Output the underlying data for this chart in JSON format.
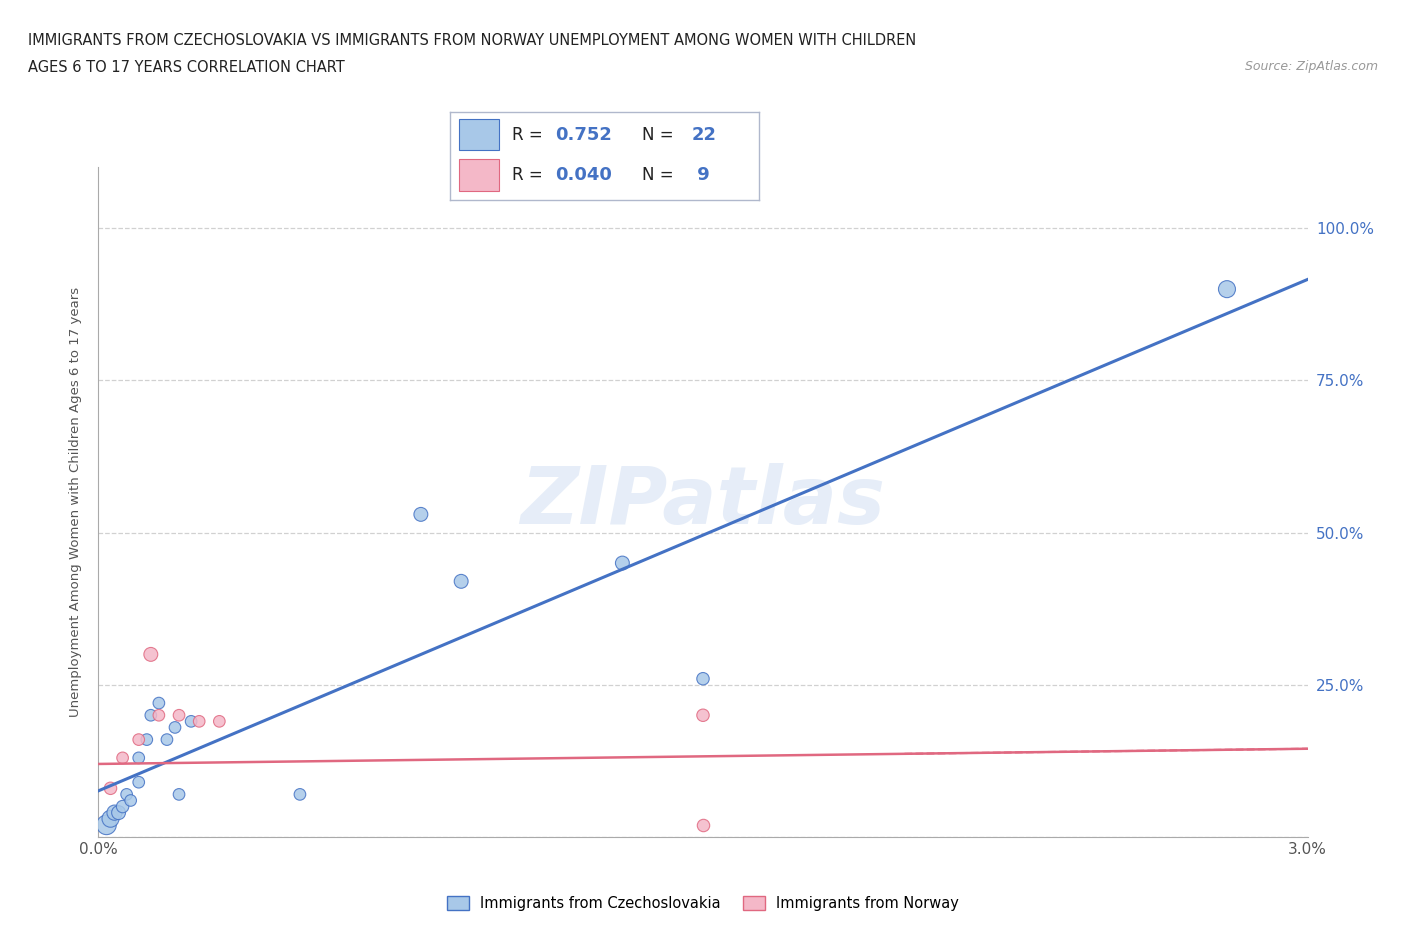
{
  "title_line1": "IMMIGRANTS FROM CZECHOSLOVAKIA VS IMMIGRANTS FROM NORWAY UNEMPLOYMENT AMONG WOMEN WITH CHILDREN",
  "title_line2": "AGES 6 TO 17 YEARS CORRELATION CHART",
  "source": "Source: ZipAtlas.com",
  "ylabel": "Unemployment Among Women with Children Ages 6 to 17 years",
  "xlim": [
    0.0,
    0.03
  ],
  "ylim": [
    0.0,
    1.1
  ],
  "watermark": "ZIPatlas",
  "color_czech": "#a8c8e8",
  "color_norway": "#f4b8c8",
  "line_color_czech": "#4472c4",
  "line_color_norway": "#e06880",
  "grid_color": "#cccccc",
  "background_color": "#ffffff",
  "czech_x": [
    0.0002,
    0.0003,
    0.0004,
    0.0005,
    0.0006,
    0.0007,
    0.0008,
    0.001,
    0.001,
    0.0012,
    0.0013,
    0.0015,
    0.0017,
    0.0019,
    0.002,
    0.0023,
    0.005,
    0.008,
    0.009,
    0.013,
    0.015,
    0.028
  ],
  "czech_y": [
    0.02,
    0.03,
    0.04,
    0.04,
    0.05,
    0.07,
    0.06,
    0.09,
    0.13,
    0.16,
    0.2,
    0.22,
    0.16,
    0.18,
    0.07,
    0.19,
    0.07,
    0.53,
    0.42,
    0.45,
    0.26,
    0.9
  ],
  "norway_x": [
    0.0003,
    0.0006,
    0.001,
    0.0013,
    0.0015,
    0.002,
    0.0025,
    0.003,
    0.015
  ],
  "norway_y": [
    0.08,
    0.13,
    0.16,
    0.3,
    0.2,
    0.2,
    0.19,
    0.19,
    0.2
  ],
  "norway_x2": [
    0.015
  ],
  "norway_y2": [
    0.02
  ],
  "czech_sizes": [
    200,
    150,
    120,
    100,
    80,
    70,
    70,
    70,
    70,
    70,
    70,
    70,
    70,
    70,
    70,
    70,
    70,
    100,
    100,
    100,
    80,
    150
  ],
  "norway_sizes": [
    80,
    70,
    70,
    100,
    70,
    70,
    70,
    70,
    80
  ]
}
